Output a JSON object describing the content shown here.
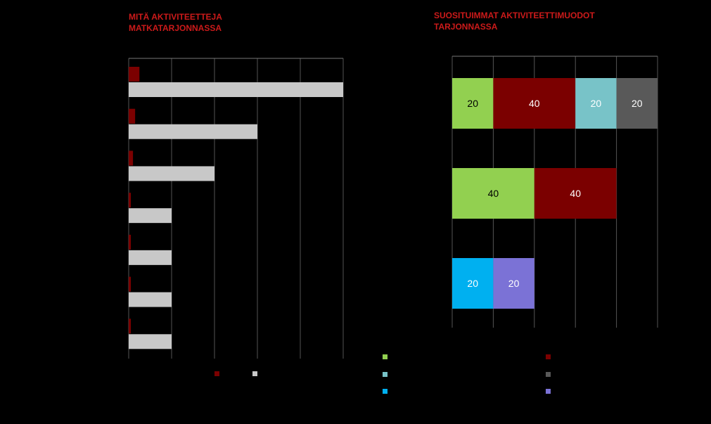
{
  "chart_data": [
    {
      "type": "bar",
      "orientation": "horizontal",
      "title": "MITÄ AKTIVITEETTEJA\nMATKATARJONNASSA",
      "categories": [
        "",
        "",
        "",
        "",
        "",
        "",
        ""
      ],
      "series": [
        {
          "name": "",
          "color": "#7b0000",
          "values": [
            2.5,
            1.5,
            1,
            0.5,
            0.5,
            0.5,
            0.5
          ]
        },
        {
          "name": "",
          "color": "#c8c8c8",
          "values": [
            50,
            30,
            20,
            10,
            10,
            10,
            10
          ]
        }
      ],
      "xlim": [
        0,
        50
      ],
      "grid": true,
      "legend": "bottom"
    },
    {
      "type": "bar",
      "orientation": "horizontal",
      "stacked": true,
      "title": "SUOSITUIMMAT  AKTIVITEETTIMUODOT\nTARJONNASSA",
      "categories": [
        "",
        "",
        ""
      ],
      "series": [
        {
          "name": "",
          "color": "#92d050",
          "values": [
            20,
            40,
            0
          ]
        },
        {
          "name": "",
          "color": "#7b0000",
          "values": [
            40,
            40,
            0
          ]
        },
        {
          "name": "",
          "color": "#78c3c8",
          "values": [
            20,
            0,
            0
          ]
        },
        {
          "name": "",
          "color": "#595959",
          "values": [
            20,
            0,
            0
          ]
        },
        {
          "name": "",
          "color": "#00b0f0",
          "values": [
            0,
            0,
            20
          ]
        },
        {
          "name": "",
          "color": "#7b72d6",
          "values": [
            0,
            0,
            20
          ]
        }
      ],
      "xlim": [
        0,
        100
      ],
      "grid": true,
      "legend": "bottom"
    }
  ]
}
